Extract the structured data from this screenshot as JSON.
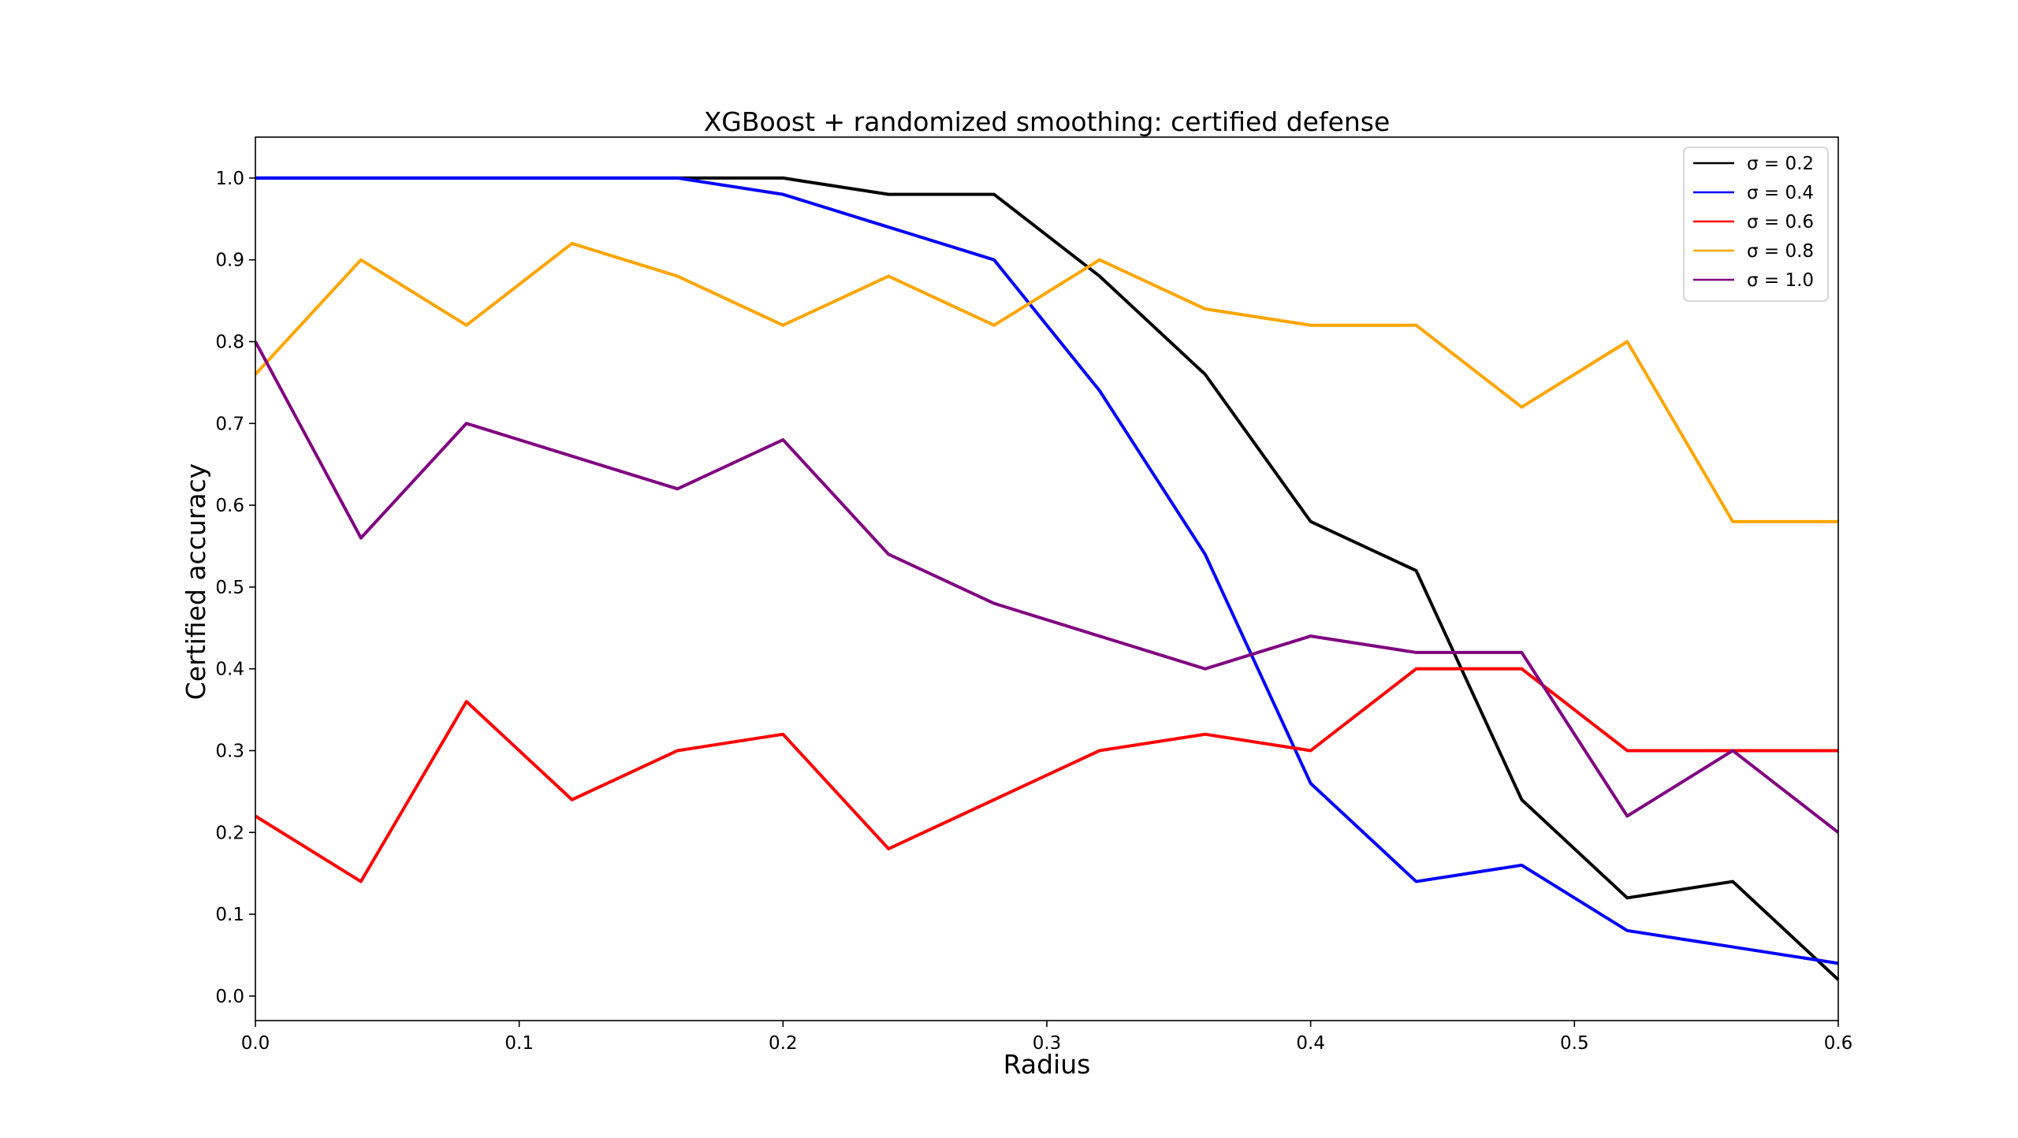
{
  "chart_data": {
    "type": "line",
    "title": "XGBoost + randomized smoothing: certified defense",
    "xlabel": "Radius",
    "ylabel": "Certified accuracy",
    "xlim": [
      0.0,
      0.6
    ],
    "ylim": [
      -0.03,
      1.05
    ],
    "xticks": [
      0.0,
      0.1,
      0.2,
      0.3,
      0.4,
      0.5,
      0.6
    ],
    "xtick_labels": [
      "0.0",
      "0.1",
      "0.2",
      "0.3",
      "0.4",
      "0.5",
      "0.6"
    ],
    "yticks": [
      0.0,
      0.1,
      0.2,
      0.3,
      0.4,
      0.5,
      0.6,
      0.7,
      0.8,
      0.9,
      1.0
    ],
    "ytick_labels": [
      "0.0",
      "0.1",
      "0.2",
      "0.3",
      "0.4",
      "0.5",
      "0.6",
      "0.7",
      "0.8",
      "0.9",
      "1.0"
    ],
    "grid": false,
    "legend_position": "top-right",
    "x": [
      0.0,
      0.04,
      0.08,
      0.12,
      0.16,
      0.2,
      0.24,
      0.28,
      0.32,
      0.36,
      0.4,
      0.44,
      0.48,
      0.52,
      0.56,
      0.6
    ],
    "series": [
      {
        "name": "σ = 0.2",
        "color": "#000000",
        "values": [
          1.0,
          1.0,
          1.0,
          1.0,
          1.0,
          1.0,
          0.98,
          0.98,
          0.88,
          0.76,
          0.58,
          0.52,
          0.24,
          0.12,
          0.14,
          0.02
        ]
      },
      {
        "name": "σ = 0.4",
        "color": "#0000ff",
        "values": [
          1.0,
          1.0,
          1.0,
          1.0,
          1.0,
          0.98,
          0.94,
          0.9,
          0.74,
          0.54,
          0.26,
          0.14,
          0.16,
          0.08,
          0.06,
          0.04
        ]
      },
      {
        "name": "σ = 0.6",
        "color": "#ff0000",
        "values": [
          0.22,
          0.14,
          0.36,
          0.24,
          0.3,
          0.32,
          0.18,
          0.24,
          0.3,
          0.32,
          0.3,
          0.4,
          0.4,
          0.3,
          0.3,
          0.3
        ]
      },
      {
        "name": "σ = 0.8",
        "color": "#ffa500",
        "values": [
          0.76,
          0.9,
          0.82,
          0.92,
          0.88,
          0.82,
          0.88,
          0.82,
          0.9,
          0.84,
          0.82,
          0.82,
          0.72,
          0.8,
          0.58,
          0.58
        ]
      },
      {
        "name": "σ = 1.0",
        "color": "#800080",
        "values": [
          0.8,
          0.56,
          0.7,
          0.66,
          0.62,
          0.68,
          0.54,
          0.48,
          0.44,
          0.4,
          0.44,
          0.42,
          0.42,
          0.22,
          0.3,
          0.2
        ]
      }
    ]
  }
}
